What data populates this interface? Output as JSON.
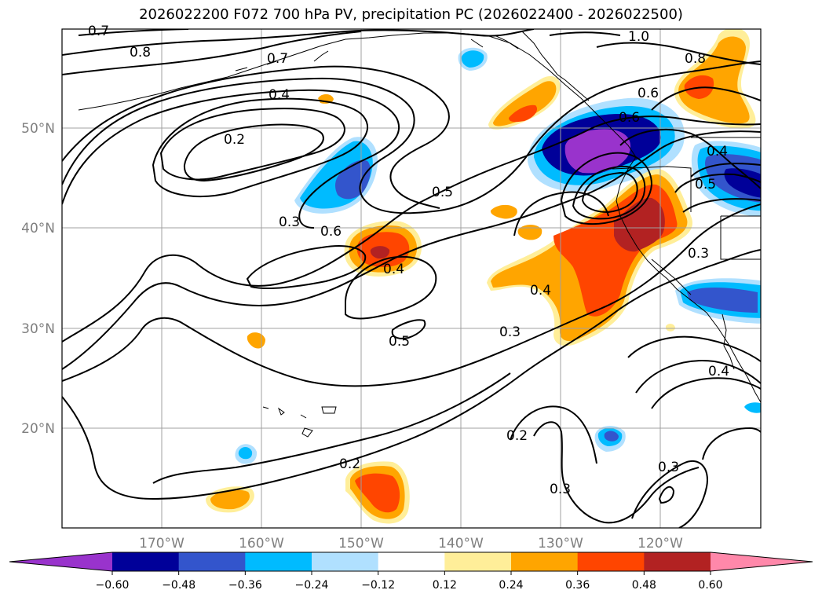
{
  "title": "2026022200 F072 700 hPa PV, precipitation PC (2026022400 - 2026022500)",
  "lat_labels": [
    "50°N",
    "40°N",
    "30°N",
    "20°N"
  ],
  "lon_labels": [
    "170°W",
    "160°W",
    "150°W",
    "140°W",
    "130°W",
    "120°W"
  ],
  "contour_labels": [
    "0.7",
    "0.8",
    "0.7",
    "0.4",
    "0.2",
    "1.0",
    "0.8",
    "0.6",
    "0.6",
    "0.5",
    "0.5",
    "0.3",
    "0.6",
    "0.4",
    "0.4",
    "0.3",
    "0.3",
    "0.4",
    "0.5",
    "0.2",
    "0.2",
    "0.3",
    "0.3",
    "0.4"
  ],
  "colorbar": {
    "ticks": [
      "−0.60",
      "−0.48",
      "−0.36",
      "−0.24",
      "−0.12",
      "0.12",
      "0.24",
      "0.36",
      "0.48",
      "0.60"
    ],
    "colors": [
      "#9933cc",
      "#000099",
      "#3355cc",
      "#00bbff",
      "#b0e0ff",
      "#ffffff",
      "#ffee99",
      "#ffa500",
      "#ff4500",
      "#b22222",
      "#ff88aa"
    ]
  }
}
